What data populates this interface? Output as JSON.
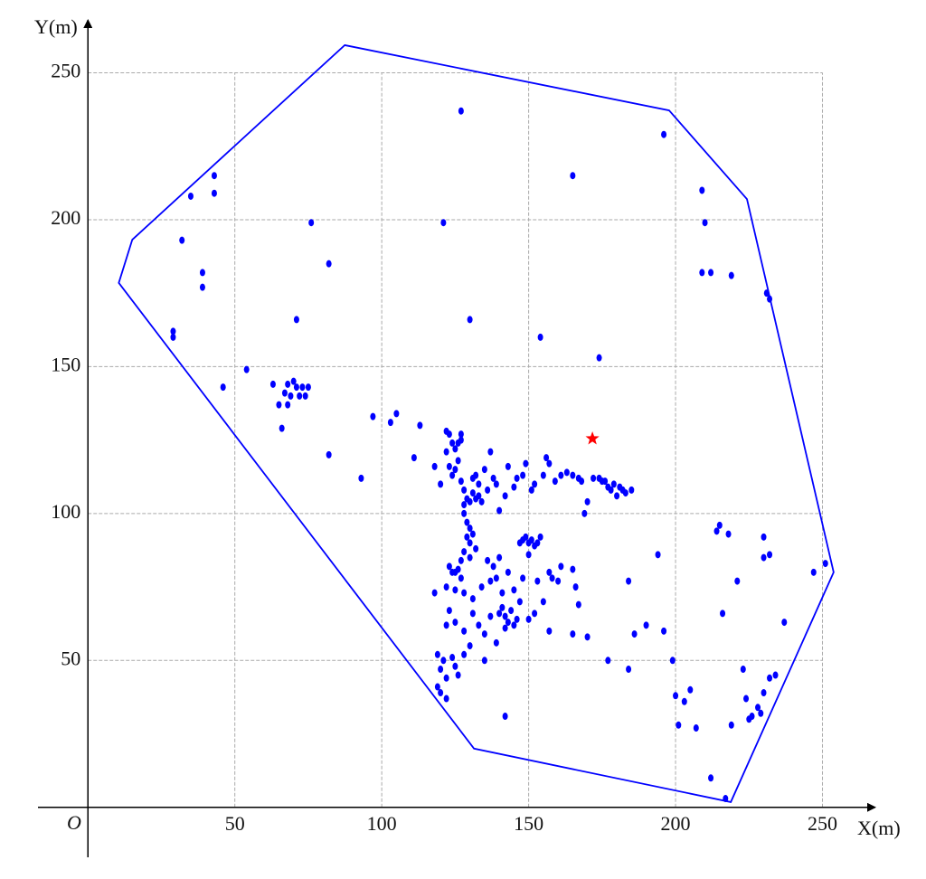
{
  "chart_data": {
    "type": "scatter",
    "x_label": "X(m)",
    "y_label": "Y(m)",
    "origin_label": "O",
    "xlim": [
      -17,
      268
    ],
    "ylim": [
      -17,
      268
    ],
    "xticks": [
      50,
      100,
      150,
      200,
      250
    ],
    "yticks": [
      50,
      100,
      150,
      200,
      250
    ],
    "grid": true,
    "color": "#0000ff",
    "x": [
      35,
      43,
      43,
      32,
      39,
      39,
      76,
      82,
      71,
      29,
      29,
      54,
      46,
      63,
      65,
      67,
      68,
      70,
      71,
      72,
      73,
      74,
      75,
      66,
      68,
      69,
      127,
      121,
      196,
      165,
      209,
      210,
      209,
      212,
      219,
      231,
      232,
      130,
      154,
      174,
      82,
      93,
      97,
      103,
      105,
      113,
      111,
      118,
      120,
      122,
      123,
      124,
      125,
      126,
      127,
      127,
      122,
      123,
      124,
      125,
      126,
      127,
      128,
      129,
      128,
      130,
      131,
      132,
      133,
      131,
      132,
      133,
      134,
      135,
      136,
      137,
      138,
      139,
      140,
      142,
      143,
      145,
      146,
      148,
      149,
      151,
      152,
      155,
      156,
      157,
      159,
      161,
      163,
      165,
      167,
      168,
      170,
      169,
      172,
      174,
      175,
      176,
      177,
      178,
      179,
      180,
      181,
      182,
      183,
      185,
      128,
      129,
      130,
      129,
      130,
      131,
      132,
      130,
      128,
      127,
      123,
      124,
      125,
      126,
      127,
      122,
      118,
      125,
      128,
      131,
      134,
      136,
      138,
      139,
      137,
      140,
      141,
      123,
      122,
      125,
      128,
      131,
      133,
      135,
      137,
      140,
      141,
      142,
      143,
      144,
      142,
      145,
      146,
      147,
      145,
      143,
      148,
      149,
      150,
      151,
      152,
      153,
      154,
      147,
      150,
      148,
      153,
      155,
      157,
      158,
      160,
      161,
      165,
      166,
      167,
      165,
      170,
      157,
      152,
      150,
      130,
      128,
      124,
      119,
      120,
      121,
      122,
      119,
      120,
      122,
      126,
      125,
      142,
      135,
      139,
      194,
      214,
      215,
      218,
      221,
      184,
      186,
      190,
      196,
      199,
      184,
      177,
      200,
      201,
      203,
      205,
      207,
      212,
      217,
      216,
      223,
      219,
      224,
      225,
      226,
      228,
      229,
      230,
      232,
      234,
      230,
      232,
      230,
      237,
      247,
      251
    ],
    "values": [
      208,
      215,
      209,
      193,
      182,
      177,
      199,
      185,
      166,
      162,
      160,
      149,
      143,
      144,
      137,
      141,
      144,
      145,
      143,
      140,
      143,
      140,
      143,
      129,
      137,
      140,
      237,
      199,
      229,
      215,
      210,
      199,
      182,
      182,
      181,
      175,
      173,
      166,
      160,
      153,
      120,
      112,
      133,
      131,
      134,
      130,
      119,
      116,
      110,
      128,
      127,
      124,
      122,
      124,
      127,
      125,
      121,
      116,
      113,
      115,
      118,
      111,
      108,
      105,
      103,
      104,
      112,
      113,
      110,
      107,
      105,
      106,
      104,
      115,
      108,
      121,
      112,
      110,
      101,
      106,
      116,
      109,
      112,
      113,
      117,
      108,
      110,
      113,
      119,
      117,
      111,
      113,
      114,
      113,
      112,
      111,
      104,
      100,
      112,
      112,
      111,
      111,
      109,
      108,
      110,
      106,
      109,
      108,
      107,
      108,
      100,
      97,
      95,
      92,
      90,
      93,
      88,
      85,
      87,
      84,
      82,
      80,
      80,
      81,
      78,
      75,
      73,
      74,
      73,
      71,
      75,
      84,
      82,
      78,
      77,
      85,
      73,
      67,
      62,
      63,
      60,
      66,
      62,
      59,
      65,
      66,
      68,
      65,
      63,
      67,
      61,
      62,
      64,
      70,
      74,
      80,
      91,
      92,
      90,
      91,
      89,
      90,
      92,
      90,
      86,
      78,
      77,
      70,
      80,
      78,
      77,
      82,
      81,
      75,
      69,
      59,
      58,
      60,
      66,
      64,
      55,
      52,
      51,
      52,
      47,
      50,
      44,
      41,
      39,
      37,
      45,
      48,
      31,
      50,
      56,
      86,
      94,
      96,
      93,
      77,
      77,
      59,
      62,
      60,
      50,
      47,
      50,
      38,
      28,
      36,
      40,
      27,
      10,
      3,
      66,
      47,
      28,
      37,
      30,
      31,
      34,
      32,
      39,
      44,
      45,
      92,
      86,
      85,
      63,
      80,
      83
    ],
    "boundary": {
      "color": "#0000ff",
      "x": [
        87.4,
        197.8,
        224.3,
        253.8,
        218.8,
        131.4,
        10.5,
        15.1
      ],
      "y": [
        259.4,
        237.2,
        207,
        80,
        1.8,
        20,
        178.5,
        193.2
      ]
    },
    "marker": {
      "color": "#ff0000",
      "x": 171.7,
      "y": 125.5
    }
  }
}
